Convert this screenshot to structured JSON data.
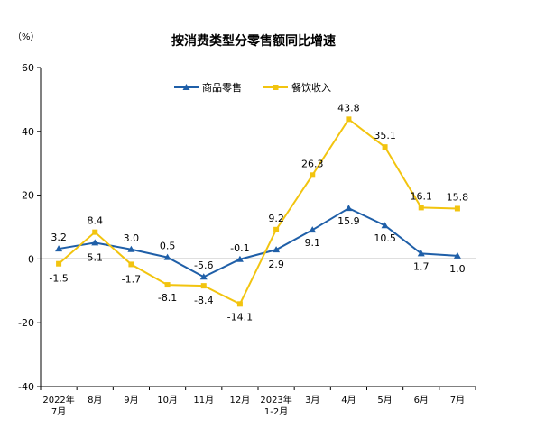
{
  "chart_data": {
    "type": "line",
    "title": "按消费类型分零售额同比增速",
    "unit_label": "（%）",
    "categories": [
      [
        "2022年",
        "7月"
      ],
      [
        "8月"
      ],
      [
        "9月"
      ],
      [
        "10月"
      ],
      [
        "11月"
      ],
      [
        "12月"
      ],
      [
        "2023年",
        "1-2月"
      ],
      [
        "3月"
      ],
      [
        "4月"
      ],
      [
        "5月"
      ],
      [
        "6月"
      ],
      [
        "7月"
      ]
    ],
    "ylim": [
      -40,
      60
    ],
    "yticks": [
      -40,
      -20,
      0,
      20,
      40,
      60
    ],
    "legend_position": "top",
    "series": [
      {
        "name": "商品零售",
        "color": "#1f5fa8",
        "marker": "triangle",
        "values": [
          3.2,
          5.1,
          3.0,
          0.5,
          -5.6,
          -0.1,
          2.9,
          9.1,
          15.9,
          10.5,
          1.7,
          1.0
        ],
        "labels": [
          "3.2",
          "5.1",
          "3.0",
          "0.5",
          "-5.6",
          "-0.1",
          "2.9",
          "9.1",
          "15.9",
          "10.5",
          "1.7",
          "1.0"
        ]
      },
      {
        "name": "餐饮收入",
        "color": "#f2c40f",
        "marker": "square",
        "values": [
          -1.5,
          8.4,
          -1.7,
          -8.1,
          -8.4,
          -14.1,
          9.2,
          26.3,
          43.8,
          35.1,
          16.1,
          15.8
        ],
        "labels": [
          "-1.5",
          "8.4",
          "-1.7",
          "-8.1",
          "-8.4",
          "-14.1",
          "9.2",
          "26.3",
          "43.8",
          "35.1",
          "16.1",
          "15.8"
        ]
      }
    ]
  }
}
